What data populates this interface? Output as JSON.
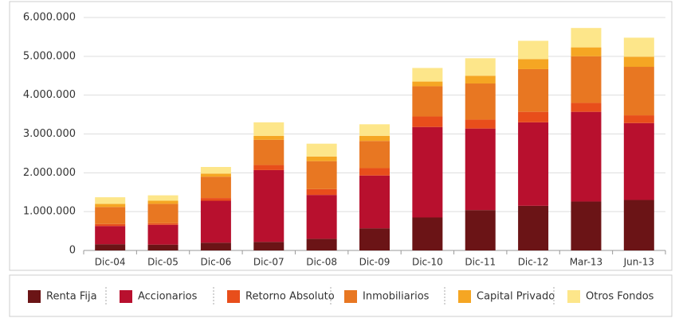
{
  "chart_data": {
    "type": "stacked_bar",
    "categories": [
      "Dic-04",
      "Dic-05",
      "Dic-06",
      "Dic-07",
      "Dic-08",
      "Dic-09",
      "Dic-10",
      "Dic-11",
      "Dic-12",
      "Mar-13",
      "Jun-13"
    ],
    "series": [
      {
        "name": "Renta Fija",
        "color": "#6b1416",
        "values": [
          160000,
          150000,
          200000,
          220000,
          300000,
          570000,
          850000,
          1040000,
          1150000,
          1260000,
          1300000
        ]
      },
      {
        "name": "Accionarios",
        "color": "#b8102e",
        "values": [
          470000,
          510000,
          1080000,
          1850000,
          1130000,
          1360000,
          2330000,
          2100000,
          2150000,
          2310000,
          1980000
        ]
      },
      {
        "name": "Retorno Absoluto",
        "color": "#e84e1b",
        "values": [
          50000,
          40000,
          70000,
          130000,
          150000,
          190000,
          270000,
          230000,
          270000,
          230000,
          200000
        ]
      },
      {
        "name": "Inmobiliarios",
        "color": "#e87722",
        "values": [
          440000,
          500000,
          550000,
          650000,
          720000,
          700000,
          780000,
          930000,
          1100000,
          1200000,
          1250000
        ]
      },
      {
        "name": "Capital Privado",
        "color": "#f5a623",
        "values": [
          80000,
          80000,
          80000,
          100000,
          120000,
          130000,
          120000,
          200000,
          260000,
          230000,
          260000
        ]
      },
      {
        "name": "Otros Fondos",
        "color": "#fde68a",
        "values": [
          170000,
          140000,
          170000,
          350000,
          330000,
          300000,
          350000,
          450000,
          470000,
          500000,
          490000
        ]
      }
    ],
    "ylim": [
      0,
      6000000
    ],
    "yticks": [
      0,
      {
        "value": 1000000,
        "label": "1.000.000"
      },
      {
        "value": 2000000,
        "label": "2.000.000"
      },
      {
        "value": 3000000,
        "label": "3.000.000"
      },
      {
        "value": 4000000,
        "label": "4.000.000"
      },
      {
        "value": 5000000,
        "label": "5.000.000"
      },
      {
        "value": 6000000,
        "label": "6.000.000"
      }
    ],
    "grid": true,
    "legend": "bottom"
  }
}
